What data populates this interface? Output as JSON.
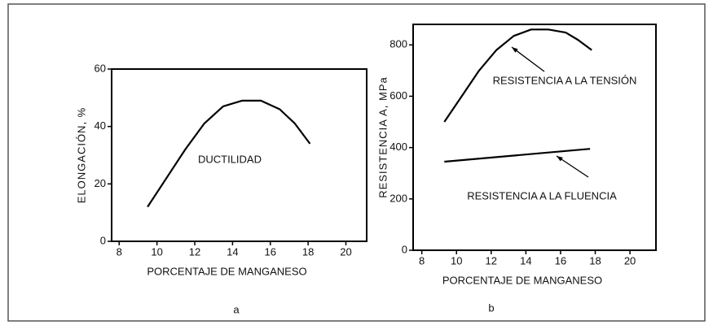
{
  "chart_data": [
    {
      "type": "line",
      "caption": "a",
      "xlabel": "PORCENTAJE DE MANGANESO",
      "ylabel": "ELONGACIÓN, %",
      "xlim": [
        7.6,
        21.1
      ],
      "xticks": [
        8,
        10,
        12,
        14,
        16,
        18,
        20
      ],
      "ylim": [
        0,
        60
      ],
      "yticks": [
        0,
        20,
        40,
        60
      ],
      "series": [
        {
          "name": "DUCTILIDAD",
          "color": "#000000",
          "x": [
            9.5,
            10.5,
            11.5,
            12.5,
            13.5,
            14.5,
            15.5,
            16.5,
            17.3,
            18.1
          ],
          "values": [
            12,
            22,
            32,
            41,
            47,
            49,
            49,
            46,
            41,
            34
          ]
        }
      ]
    },
    {
      "type": "line",
      "caption": "b",
      "xlabel": "PORCENTAJE DE MANGANESO",
      "ylabel": "RESISTENCIA A, MPa",
      "xlim": [
        7.5,
        21.5
      ],
      "xticks": [
        8,
        10,
        12,
        14,
        16,
        18,
        20
      ],
      "ylim": [
        0,
        880
      ],
      "yticks": [
        0,
        200,
        400,
        600,
        800
      ],
      "series": [
        {
          "name": "RESISTENCIA A LA TENSIÓN",
          "color": "#000000",
          "x": [
            9.3,
            10.3,
            11.3,
            12.3,
            13.3,
            14.3,
            15.3,
            16.3,
            17.0,
            17.8
          ],
          "values": [
            500,
            600,
            700,
            780,
            835,
            860,
            860,
            848,
            820,
            780
          ]
        },
        {
          "name": "RESISTENCIA A LA FLUENCIA",
          "color": "#000000",
          "x": [
            9.3,
            17.7
          ],
          "values": [
            345,
            395
          ]
        }
      ]
    }
  ]
}
